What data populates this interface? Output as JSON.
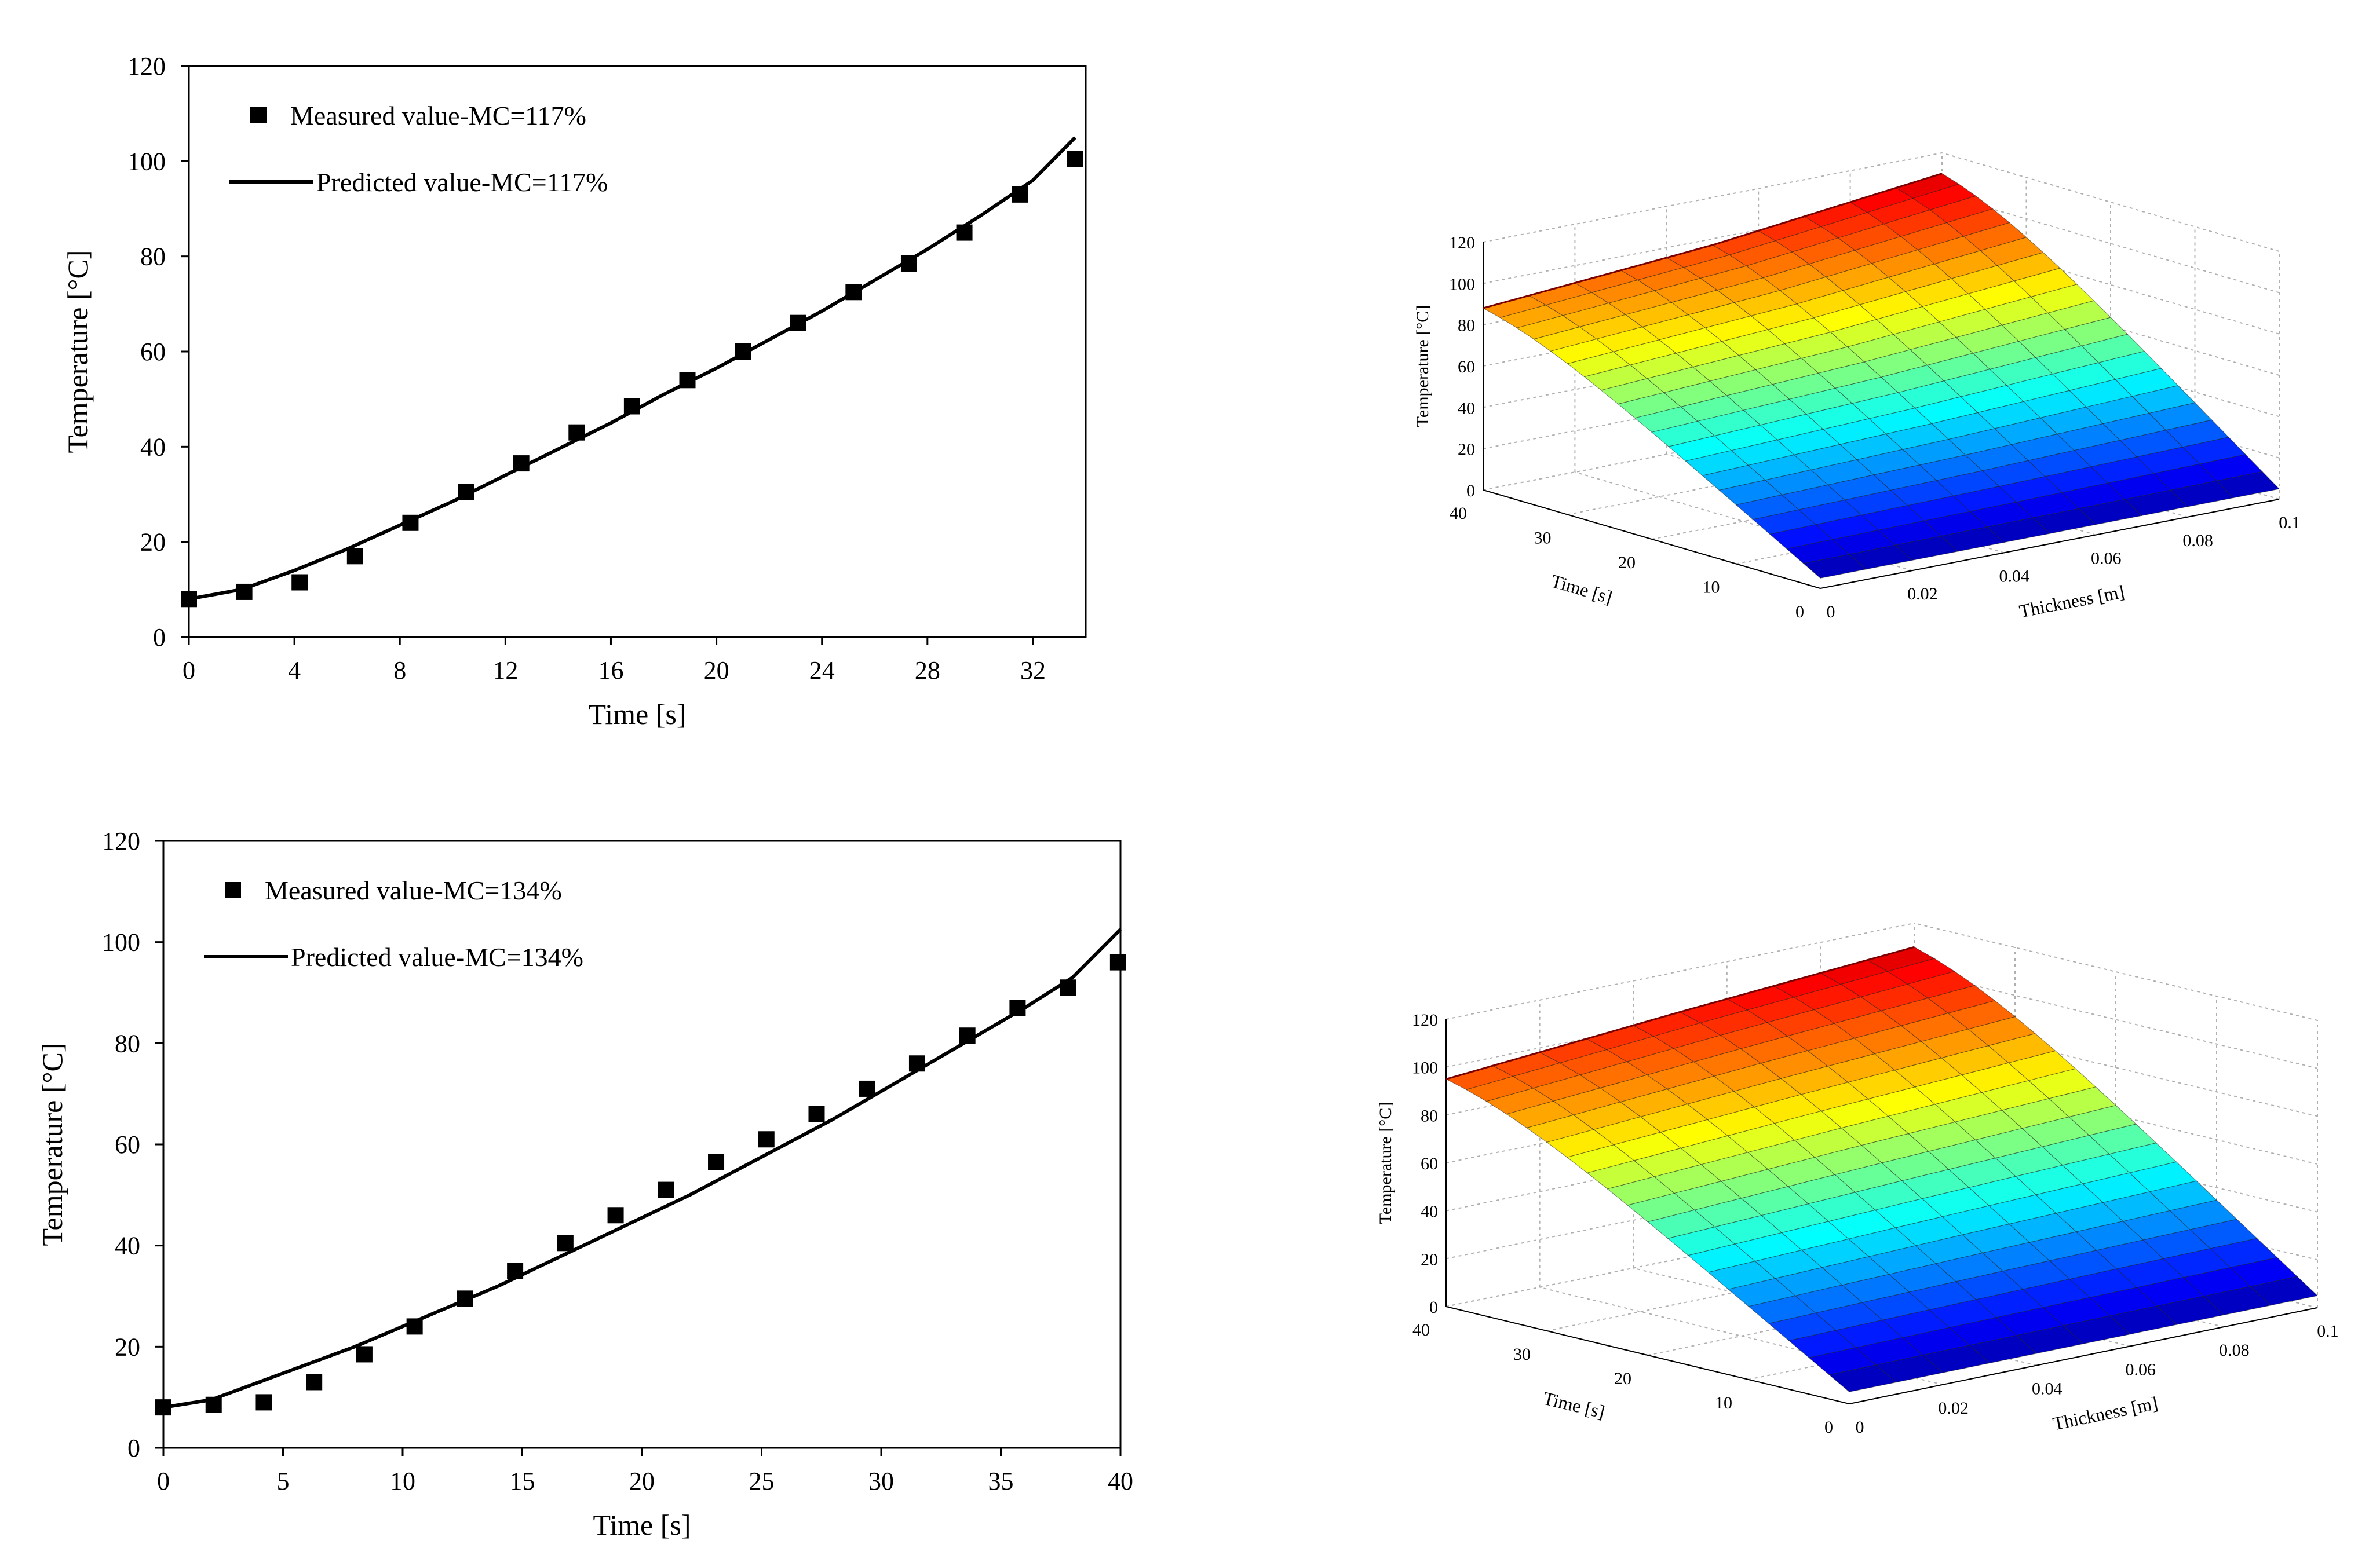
{
  "colors": {
    "axis": "#000000",
    "marker": "#000000",
    "line": "#000000",
    "grid3d": "#b0b0b0"
  },
  "colormap": "jet",
  "chart_data": [
    {
      "type": "scatter",
      "xlabel": "Time [s]",
      "ylabel": "Temperature  [°C]",
      "xlim": [
        0,
        34
      ],
      "ylim": [
        0,
        120
      ],
      "xticks": [
        "0",
        "4",
        "8",
        "12",
        "16",
        "20",
        "24",
        "28",
        "32"
      ],
      "yticks": [
        "0",
        "20",
        "40",
        "60",
        "80",
        "100",
        "120"
      ],
      "legend_position": "top-left",
      "series": [
        {
          "name": "Measured value-MC=117%",
          "marker": "square",
          "x": [
            0,
            2.1,
            4.2,
            6.3,
            8.4,
            10.5,
            12.6,
            14.7,
            16.8,
            18.9,
            21,
            23.1,
            25.2,
            27.3,
            29.4,
            31.5,
            33.6
          ],
          "y": [
            8,
            9.5,
            11.5,
            17,
            24,
            30.5,
            36.5,
            43,
            48.5,
            54,
            60,
            66,
            72.5,
            78.5,
            85,
            93,
            100.5
          ]
        },
        {
          "name": "Predicted value-MC=117%",
          "marker": "line",
          "x": [
            0,
            2,
            4,
            6,
            8,
            10,
            12,
            14,
            16,
            18,
            20,
            22,
            24,
            26,
            28,
            30,
            32,
            33.6
          ],
          "y": [
            8,
            10,
            14,
            18.5,
            23.5,
            28.5,
            34,
            39.5,
            45,
            51,
            56.5,
            62.5,
            68.5,
            75,
            81.5,
            88.5,
            96,
            105
          ]
        }
      ]
    },
    {
      "type": "surface3d",
      "xlabel": "Thickness [m]",
      "ylabel": "Time [s]",
      "zlabel": "Temperature [°C]",
      "xlim": [
        0,
        0.1
      ],
      "ylim": [
        0,
        40
      ],
      "zlim": [
        0,
        120
      ],
      "xticks": [
        "0",
        "0.02",
        "0.04",
        "0.06",
        "0.08",
        "0.1"
      ],
      "yticks": [
        "0",
        "10",
        "20",
        "30",
        "40"
      ],
      "zticks": [
        "0",
        "20",
        "40",
        "60",
        "80",
        "100",
        "120"
      ],
      "grid": true,
      "corners": {
        "t_min_all_thickness": 5,
        "t_max_thickness_min": 88,
        "t_max_thickness_mid": 97,
        "t_max_thickness_max": 110
      }
    },
    {
      "type": "scatter",
      "xlabel": "Time [s]",
      "ylabel": "Temperature  [°C]",
      "xlim": [
        0,
        40
      ],
      "ylim": [
        0,
        120
      ],
      "xticks": [
        "0",
        "5",
        "10",
        "15",
        "20",
        "25",
        "30",
        "35",
        "40"
      ],
      "yticks": [
        "0",
        "20",
        "40",
        "60",
        "80",
        "100",
        "120"
      ],
      "legend_position": "top-left",
      "series": [
        {
          "name": "Measured value-MC=134%",
          "marker": "square",
          "x": [
            0,
            2.1,
            4.2,
            6.3,
            8.4,
            10.5,
            12.6,
            14.7,
            16.8,
            18.9,
            21,
            23.1,
            25.2,
            27.3,
            29.4,
            31.5,
            33.6,
            35.7,
            37.8,
            39.9
          ],
          "y": [
            8,
            8.5,
            9,
            13,
            18.5,
            24,
            29.5,
            35,
            40.5,
            46,
            51,
            56.5,
            61,
            66,
            71,
            76,
            81.5,
            87,
            91,
            96
          ]
        },
        {
          "name": "Predicted value-MC=134%",
          "marker": "line",
          "x": [
            0,
            2,
            4,
            6,
            8,
            10,
            12,
            14,
            16,
            18,
            20,
            22,
            24,
            26,
            28,
            30,
            32,
            34,
            36,
            38,
            40
          ],
          "y": [
            8,
            9.5,
            13,
            16.5,
            20,
            24,
            28,
            32,
            36.5,
            41,
            45.5,
            50,
            55,
            60,
            65,
            70.5,
            76,
            81.5,
            87,
            93,
            102.5
          ]
        }
      ]
    },
    {
      "type": "surface3d",
      "xlabel": "Thickness [m]",
      "ylabel": "Time [s]",
      "zlabel": "Temperature [°C]",
      "xlim": [
        0,
        0.1
      ],
      "ylim": [
        0,
        40
      ],
      "zlim": [
        0,
        120
      ],
      "xticks": [
        "0",
        "0.02",
        "0.04",
        "0.06",
        "0.08",
        "0.1"
      ],
      "yticks": [
        "0",
        "10",
        "20",
        "30",
        "40"
      ],
      "zticks": [
        "0",
        "20",
        "40",
        "60",
        "80",
        "100",
        "120"
      ],
      "grid": true,
      "corners": {
        "t_min_all_thickness": 5,
        "t_max_thickness_min": 95,
        "t_max_thickness_mid": 103,
        "t_max_thickness_max": 110
      }
    }
  ]
}
